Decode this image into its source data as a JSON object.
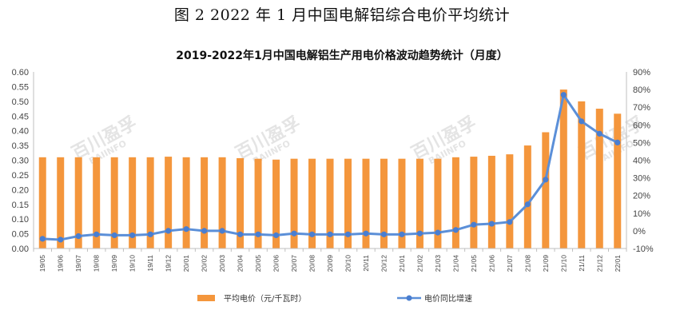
{
  "figure_caption": "图 2   2022 年 1 月中国电解铝综合电价平均统计",
  "watermark": {
    "name": "百川盈孚",
    "sub": "BAIINFO"
  },
  "colors": {
    "bar": "#F4963C",
    "line": "#5B8FD8",
    "marker": "#4A7ED0",
    "axis": "#BFBFBF"
  },
  "chart_data": {
    "type": "bar",
    "title": "2019-2022年1月中国电解铝生产用电价格波动趋势统计（月度）",
    "categories": [
      "19/05",
      "19/06",
      "19/07",
      "19/08",
      "19/09",
      "19/10",
      "19/11",
      "19/12",
      "20/01",
      "20/02",
      "20/03",
      "20/04",
      "20/05",
      "20/06",
      "20/07",
      "20/08",
      "20/09",
      "20/10",
      "20/11",
      "20/12",
      "21/01",
      "21/02",
      "21/03",
      "21/04",
      "21/05",
      "21/06",
      "21/07",
      "21/08",
      "21/09",
      "21/10",
      "21/11",
      "21/12",
      "22/01"
    ],
    "y_left": {
      "ylim": [
        0,
        0.6
      ],
      "ticks": [
        "0.00",
        "0.05",
        "0.10",
        "0.15",
        "0.20",
        "0.25",
        "0.30",
        "0.35",
        "0.40",
        "0.45",
        "0.50",
        "0.55",
        "0.60"
      ]
    },
    "y_right": {
      "ylim": [
        -10,
        90
      ],
      "ticks": [
        "-10%",
        "0%",
        "10%",
        "20%",
        "30%",
        "40%",
        "50%",
        "60%",
        "70%",
        "80%",
        "90%"
      ]
    },
    "series": [
      {
        "name": "平均电价（元/千瓦时）",
        "type": "bar",
        "axis": "left",
        "values": [
          0.31,
          0.31,
          0.31,
          0.31,
          0.31,
          0.31,
          0.31,
          0.312,
          0.31,
          0.31,
          0.31,
          0.307,
          0.305,
          0.302,
          0.305,
          0.305,
          0.305,
          0.305,
          0.305,
          0.305,
          0.305,
          0.305,
          0.305,
          0.31,
          0.312,
          0.315,
          0.32,
          0.35,
          0.395,
          0.54,
          0.5,
          0.475,
          0.458
        ]
      },
      {
        "name": "电价同比增速",
        "type": "line",
        "axis": "right",
        "values": [
          -4.5,
          -5,
          -3,
          -2,
          -2.5,
          -2.5,
          -2,
          0,
          1,
          0,
          0,
          -2,
          -2,
          -2.5,
          -1.5,
          -2,
          -2,
          -2,
          -1.5,
          -2,
          -2,
          -1.5,
          -1,
          0.5,
          3.5,
          4,
          5,
          15,
          29,
          77,
          62,
          55,
          50
        ]
      }
    ]
  }
}
